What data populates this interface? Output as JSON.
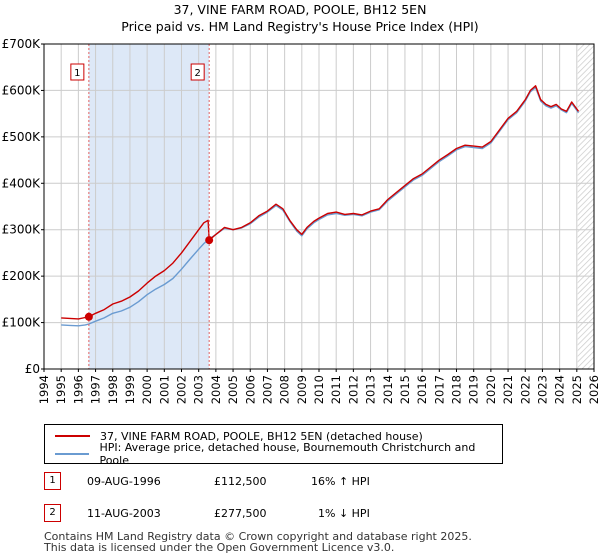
{
  "header": {
    "title": "37, VINE FARM ROAD, POOLE, BH12 5EN",
    "subtitle": "Price paid vs. HM Land Registry's House Price Index (HPI)"
  },
  "colors": {
    "property_line": "#cc0000",
    "hpi_line": "#6a9bd1",
    "highlight_band": "#dde8f7",
    "future_hatch": "#c8c8c8",
    "grid": "#cccccc",
    "marker_line": "#e06060"
  },
  "chart_data": {
    "type": "line",
    "title": "37, VINE FARM ROAD, POOLE, BH12 5EN",
    "xlabel": "",
    "ylabel": "",
    "xlim": [
      1994.0,
      2026.0
    ],
    "ylim": [
      0,
      700000
    ],
    "x_ticks": [
      "1994",
      "1995",
      "1996",
      "1997",
      "1998",
      "1999",
      "2000",
      "2001",
      "2002",
      "2003",
      "2004",
      "2005",
      "2006",
      "2007",
      "2008",
      "2009",
      "2010",
      "2011",
      "2012",
      "2013",
      "2014",
      "2015",
      "2016",
      "2017",
      "2018",
      "2019",
      "2020",
      "2021",
      "2022",
      "2023",
      "2024",
      "2025",
      "2026"
    ],
    "y_ticks": [
      {
        "value": 0,
        "label": "£0"
      },
      {
        "value": 100000,
        "label": "£100K"
      },
      {
        "value": 200000,
        "label": "£200K"
      },
      {
        "value": 300000,
        "label": "£300K"
      },
      {
        "value": 400000,
        "label": "£400K"
      },
      {
        "value": 500000,
        "label": "£500K"
      },
      {
        "value": 600000,
        "label": "£600K"
      },
      {
        "value": 700000,
        "label": "£700K"
      }
    ],
    "highlight_range": [
      1996.6,
      2003.6
    ],
    "future_from": 2025.05,
    "series": [
      {
        "name": "37, VINE FARM ROAD, POOLE, BH12 5EN (detached house)",
        "x": [
          1995.0,
          1995.5,
          1996.0,
          1996.4,
          1996.61,
          1997.0,
          1997.5,
          1998.0,
          1998.5,
          1999.0,
          1999.5,
          2000.0,
          2000.5,
          2001.0,
          2001.5,
          2002.0,
          2002.5,
          2003.0,
          2003.3,
          2003.55,
          2003.61,
          2004.0,
          2004.5,
          2005.0,
          2005.5,
          2006.0,
          2006.5,
          2007.0,
          2007.5,
          2007.9,
          2008.3,
          2008.7,
          2009.0,
          2009.3,
          2009.7,
          2010.0,
          2010.5,
          2011.0,
          2011.5,
          2012.0,
          2012.5,
          2013.0,
          2013.5,
          2014.0,
          2014.5,
          2015.0,
          2015.5,
          2016.0,
          2016.5,
          2017.0,
          2017.5,
          2018.0,
          2018.5,
          2019.0,
          2019.5,
          2020.0,
          2020.5,
          2021.0,
          2021.5,
          2022.0,
          2022.3,
          2022.6,
          2022.9,
          2023.2,
          2023.5,
          2023.8,
          2024.1,
          2024.4,
          2024.7,
          2025.0,
          2025.1
        ],
        "values": [
          110000,
          109000,
          108000,
          111000,
          112500,
          120000,
          128000,
          140000,
          146000,
          155000,
          168000,
          185000,
          200000,
          212000,
          228000,
          250000,
          275000,
          300000,
          315000,
          320000,
          277500,
          290000,
          305000,
          300000,
          305000,
          315000,
          330000,
          340000,
          355000,
          345000,
          320000,
          300000,
          290000,
          305000,
          318000,
          325000,
          335000,
          338000,
          333000,
          335000,
          332000,
          340000,
          345000,
          365000,
          380000,
          395000,
          410000,
          420000,
          435000,
          450000,
          462000,
          475000,
          482000,
          480000,
          478000,
          490000,
          515000,
          540000,
          555000,
          580000,
          600000,
          610000,
          580000,
          570000,
          565000,
          570000,
          560000,
          555000,
          575000,
          560000,
          555000
        ]
      },
      {
        "name": "HPI: Average price, detached house, Bournemouth Christchurch and Poole",
        "x": [
          1995.0,
          1995.5,
          1996.0,
          1996.4,
          1996.61,
          1997.0,
          1997.5,
          1998.0,
          1998.5,
          1999.0,
          1999.5,
          2000.0,
          2000.5,
          2001.0,
          2001.5,
          2002.0,
          2002.5,
          2003.0,
          2003.3,
          2003.55,
          2003.61,
          2004.0,
          2004.5,
          2005.0,
          2005.5,
          2006.0,
          2006.5,
          2007.0,
          2007.5,
          2007.9,
          2008.3,
          2008.7,
          2009.0,
          2009.3,
          2009.7,
          2010.0,
          2010.5,
          2011.0,
          2011.5,
          2012.0,
          2012.5,
          2013.0,
          2013.5,
          2014.0,
          2014.5,
          2015.0,
          2015.5,
          2016.0,
          2016.5,
          2017.0,
          2017.5,
          2018.0,
          2018.5,
          2019.0,
          2019.5,
          2020.0,
          2020.5,
          2021.0,
          2021.5,
          2022.0,
          2022.3,
          2022.6,
          2022.9,
          2023.2,
          2023.5,
          2023.8,
          2024.1,
          2024.4,
          2024.7,
          2025.0,
          2025.1
        ],
        "values": [
          95000,
          94000,
          93000,
          95000,
          97000,
          103000,
          110000,
          120000,
          125000,
          133000,
          145000,
          160000,
          172000,
          182000,
          195000,
          215000,
          237000,
          258000,
          270000,
          278000,
          280000,
          290000,
          303000,
          300000,
          304000,
          313000,
          327000,
          338000,
          352000,
          342000,
          318000,
          297000,
          287000,
          302000,
          315000,
          322000,
          332000,
          335000,
          331000,
          333000,
          330000,
          338000,
          343000,
          362000,
          377000,
          392000,
          407000,
          417000,
          432000,
          447000,
          459000,
          472000,
          479000,
          477000,
          475000,
          487000,
          512000,
          537000,
          552000,
          577000,
          597000,
          606000,
          577000,
          567000,
          562000,
          567000,
          558000,
          552000,
          572000,
          557000,
          552000
        ]
      }
    ],
    "sales": [
      {
        "label": "1",
        "x": 1996.61,
        "value": 112500
      },
      {
        "label": "2",
        "x": 2003.61,
        "value": 277500
      }
    ]
  },
  "legend": {
    "property_label": "37, VINE FARM ROAD, POOLE, BH12 5EN (detached house)",
    "hpi_label": "HPI: Average price, detached house, Bournemouth Christchurch and Poole"
  },
  "sales_table": [
    {
      "num": "1",
      "date": "09-AUG-1996",
      "price": "£112,500",
      "hpi": "16% ↑ HPI"
    },
    {
      "num": "2",
      "date": "11-AUG-2003",
      "price": "£277,500",
      "hpi": "1% ↓ HPI"
    }
  ],
  "footer": {
    "line1": "Contains HM Land Registry data © Crown copyright and database right 2025.",
    "line2": "This data is licensed under the Open Government Licence v3.0."
  }
}
